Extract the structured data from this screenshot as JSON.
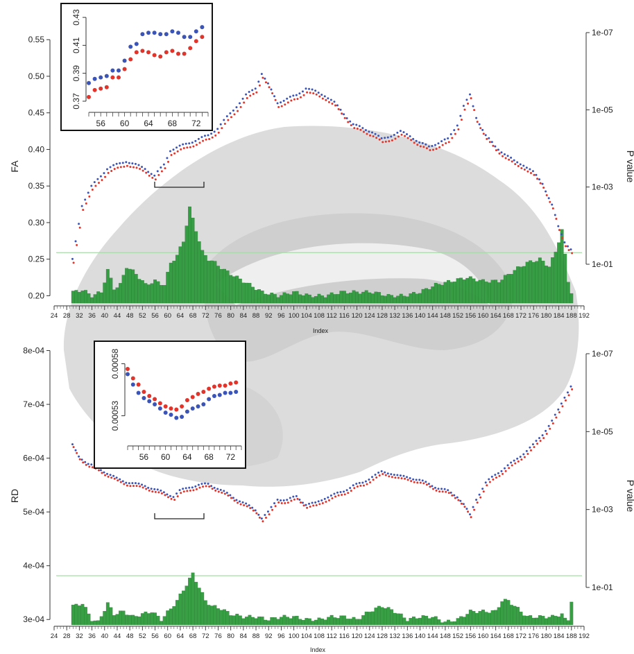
{
  "chart_data": [
    {
      "type": "line",
      "panel": "FA",
      "ylabel": "FA",
      "xlabel": "Index",
      "y2label": "P value",
      "xlim": [
        24,
        192
      ],
      "ylim": [
        0.19,
        0.59
      ],
      "x_ticks": [
        24,
        28,
        32,
        36,
        40,
        44,
        48,
        52,
        56,
        60,
        64,
        68,
        72,
        76,
        80,
        84,
        88,
        92,
        96,
        100,
        104,
        108,
        112,
        116,
        120,
        124,
        128,
        132,
        136,
        140,
        144,
        148,
        152,
        156,
        160,
        164,
        168,
        172,
        176,
        180,
        184,
        188,
        192
      ],
      "y_ticks": [
        0.2,
        0.25,
        0.3,
        0.35,
        0.4,
        0.45,
        0.5,
        0.55
      ],
      "y_tick_labels": [
        "0.20",
        "0.25",
        "0.30",
        "0.35",
        "0.40",
        "0.45",
        "0.50",
        "0.55"
      ],
      "p_ticks": [
        "1e-07",
        "1e-05",
        "1e-03",
        "1e-01"
      ],
      "threshold_p": 0.05,
      "colors": {
        "series_a": "#3a54b8",
        "series_b": "#e2342a",
        "bars": "#2f9a3c",
        "threshold": "#a8dca8"
      },
      "curve_anchors": {
        "x": [
          30,
          33,
          36,
          39,
          41,
          44,
          47,
          50,
          53,
          56,
          59,
          61,
          64,
          67,
          70,
          73,
          76,
          79,
          82,
          85,
          88,
          90,
          92,
          95,
          98,
          101,
          104,
          107,
          110,
          113,
          116,
          119,
          122,
          125,
          128,
          131,
          134,
          137,
          140,
          143,
          146,
          149,
          152,
          154,
          156,
          158,
          161,
          164,
          167,
          170,
          173,
          176,
          179,
          182,
          184,
          186,
          188
        ],
        "y": [
          0.245,
          0.32,
          0.345,
          0.36,
          0.37,
          0.375,
          0.38,
          0.375,
          0.37,
          0.36,
          0.375,
          0.395,
          0.4,
          0.405,
          0.41,
          0.415,
          0.425,
          0.44,
          0.455,
          0.47,
          0.48,
          0.5,
          0.485,
          0.46,
          0.465,
          0.47,
          0.48,
          0.475,
          0.47,
          0.46,
          0.445,
          0.43,
          0.425,
          0.42,
          0.41,
          0.415,
          0.42,
          0.415,
          0.405,
          0.4,
          0.405,
          0.41,
          0.43,
          0.455,
          0.47,
          0.44,
          0.415,
          0.4,
          0.39,
          0.38,
          0.375,
          0.365,
          0.35,
          0.32,
          0.29,
          0.27,
          0.26
        ]
      },
      "series_offset": 0.004,
      "bars": {
        "x_range": [
          30,
          188
        ],
        "anchors_x": [
          30,
          33,
          36,
          39,
          41,
          43,
          45,
          47,
          50,
          53,
          56,
          59,
          61,
          63,
          65,
          67,
          69,
          71,
          73,
          75,
          78,
          82,
          86,
          90,
          95,
          100,
          105,
          110,
          115,
          120,
          125,
          130,
          135,
          140,
          145,
          150,
          155,
          160,
          165,
          170,
          174,
          178,
          181,
          183,
          185,
          187,
          188
        ],
        "anchors_y": [
          0.205,
          0.208,
          0.2,
          0.205,
          0.235,
          0.21,
          0.215,
          0.24,
          0.23,
          0.215,
          0.22,
          0.215,
          0.245,
          0.255,
          0.275,
          0.32,
          0.29,
          0.26,
          0.25,
          0.245,
          0.235,
          0.225,
          0.215,
          0.205,
          0.2,
          0.205,
          0.2,
          0.2,
          0.205,
          0.205,
          0.205,
          0.2,
          0.2,
          0.205,
          0.215,
          0.22,
          0.225,
          0.22,
          0.22,
          0.235,
          0.245,
          0.25,
          0.24,
          0.26,
          0.29,
          0.22,
          0.205
        ]
      },
      "inset": {
        "xlim": [
          54,
          74
        ],
        "ylim": [
          0.365,
          0.435
        ],
        "x_ticks": [
          56,
          60,
          64,
          68,
          72
        ],
        "y_ticks": [
          0.37,
          0.39,
          0.41,
          0.43
        ],
        "y_tick_labels": [
          "0.37",
          "0.39",
          "0.41",
          "0.43"
        ],
        "x": [
          54,
          55,
          56,
          57,
          58,
          59,
          60,
          61,
          62,
          63,
          64,
          65,
          66,
          67,
          68,
          69,
          70,
          71,
          72,
          73
        ],
        "series_a": [
          0.383,
          0.386,
          0.387,
          0.388,
          0.392,
          0.392,
          0.399,
          0.409,
          0.411,
          0.418,
          0.419,
          0.419,
          0.418,
          0.418,
          0.42,
          0.419,
          0.416,
          0.416,
          0.42,
          0.423
        ],
        "series_b": [
          0.373,
          0.378,
          0.379,
          0.38,
          0.387,
          0.387,
          0.393,
          0.4,
          0.405,
          0.406,
          0.405,
          0.403,
          0.402,
          0.405,
          0.406,
          0.404,
          0.404,
          0.408,
          0.413,
          0.416
        ]
      }
    },
    {
      "type": "line",
      "panel": "RD",
      "ylabel": "RD",
      "xlabel": "Index",
      "y2label": "P value",
      "xlim": [
        24,
        192
      ],
      "ylim": [
        0.00029,
        0.00082
      ],
      "x_ticks": [
        24,
        28,
        32,
        36,
        40,
        44,
        48,
        52,
        56,
        60,
        64,
        68,
        72,
        76,
        80,
        84,
        88,
        92,
        96,
        100,
        104,
        108,
        112,
        116,
        120,
        124,
        128,
        132,
        136,
        140,
        144,
        148,
        152,
        156,
        160,
        164,
        168,
        172,
        176,
        180,
        184,
        188,
        192
      ],
      "y_ticks": [
        0.0003,
        0.0004,
        0.0005,
        0.0006,
        0.0007,
        0.0008
      ],
      "y_tick_labels": [
        "3e-04",
        "4e-04",
        "5e-04",
        "6e-04",
        "7e-04",
        "8e-04"
      ],
      "p_ticks": [
        "1e-07",
        "1e-05",
        "1e-03",
        "1e-01"
      ],
      "threshold_p": 0.05,
      "colors": {
        "series_a": "#3a54b8",
        "series_b": "#e2342a",
        "bars": "#2f9a3c",
        "threshold": "#a8dca8"
      },
      "curve_anchors": {
        "x": [
          30,
          32,
          35,
          38,
          41,
          44,
          47,
          50,
          53,
          56,
          59,
          62,
          64,
          67,
          70,
          73,
          76,
          79,
          82,
          85,
          88,
          90,
          92,
          95,
          98,
          101,
          104,
          107,
          110,
          113,
          116,
          119,
          122,
          125,
          128,
          131,
          134,
          137,
          140,
          143,
          146,
          149,
          152,
          154,
          156,
          158,
          161,
          164,
          167,
          170,
          173,
          176,
          179,
          182,
          184,
          186,
          188
        ],
        "y": [
          0.00062,
          0.0006,
          0.000585,
          0.000578,
          0.000568,
          0.000558,
          0.000552,
          0.000548,
          0.000545,
          0.000538,
          0.000532,
          0.000525,
          0.000535,
          0.000542,
          0.000546,
          0.000548,
          0.00054,
          0.00053,
          0.00052,
          0.00051,
          0.0005,
          0.000485,
          0.000495,
          0.00052,
          0.000518,
          0.000525,
          0.00051,
          0.000512,
          0.000522,
          0.000528,
          0.000535,
          0.000545,
          0.00055,
          0.000562,
          0.00057,
          0.000568,
          0.000562,
          0.00056,
          0.000555,
          0.000548,
          0.00054,
          0.000535,
          0.000525,
          0.00051,
          0.00049,
          0.00052,
          0.00055,
          0.000565,
          0.000578,
          0.00059,
          0.000605,
          0.00062,
          0.00064,
          0.000665,
          0.000685,
          0.00071,
          0.00073
        ]
      },
      "series_offset": 4e-06,
      "bars": {
        "x_range": [
          30,
          188
        ],
        "anchors_x": [
          30,
          33,
          36,
          38,
          41,
          43,
          46,
          49,
          52,
          55,
          58,
          61,
          63,
          65,
          67,
          68,
          70,
          72,
          74,
          77,
          80,
          84,
          88,
          92,
          96,
          100,
          104,
          108,
          112,
          116,
          120,
          124,
          128,
          132,
          136,
          140,
          144,
          148,
          152,
          156,
          160,
          164,
          166,
          168,
          171,
          174,
          178,
          182,
          185,
          186,
          187,
          188
        ],
        "anchors_y": [
          0.000325,
          0.00033,
          0.0003,
          0.000295,
          0.00033,
          0.00031,
          0.000315,
          0.000305,
          0.00031,
          0.000315,
          0.0003,
          0.00032,
          0.000335,
          0.000355,
          0.000375,
          0.000385,
          0.00036,
          0.000335,
          0.000325,
          0.00032,
          0.00031,
          0.000305,
          0.000305,
          0.0003,
          0.000305,
          0.000305,
          0.0003,
          0.0003,
          0.000305,
          0.000305,
          0.0003,
          0.000315,
          0.000325,
          0.000315,
          0.0003,
          0.000305,
          0.000305,
          0.000295,
          0.0003,
          0.000315,
          0.000315,
          0.000315,
          0.000335,
          0.000335,
          0.00032,
          0.000305,
          0.000305,
          0.000305,
          0.00031,
          0.0003,
          0.0003,
          0.000335
        ]
      },
      "inset": {
        "xlim": [
          53,
          74
        ],
        "ylim": [
          0.000505,
          0.000595
        ],
        "x_ticks": [
          56,
          60,
          64,
          68,
          72
        ],
        "y_ticks": [
          0.00053,
          0.00058
        ],
        "y_tick_labels": [
          "0.00053",
          "0.00058"
        ],
        "x": [
          53,
          54,
          55,
          56,
          57,
          58,
          59,
          60,
          61,
          62,
          63,
          64,
          65,
          66,
          67,
          68,
          69,
          70,
          71,
          72,
          73
        ],
        "series_a": [
          0.00057,
          0.00056,
          0.000552,
          0.000547,
          0.000544,
          0.000541,
          0.000537,
          0.000533,
          0.000531,
          0.000528,
          0.000529,
          0.000534,
          0.000537,
          0.000539,
          0.000541,
          0.000546,
          0.000549,
          0.00055,
          0.000552,
          0.000552,
          0.000553
        ],
        "series_b": [
          0.000575,
          0.000566,
          0.00056,
          0.000553,
          0.000549,
          0.000546,
          0.000542,
          0.000539,
          0.000537,
          0.000536,
          0.000539,
          0.000545,
          0.000548,
          0.000551,
          0.000553,
          0.000556,
          0.000558,
          0.000559,
          0.000559,
          0.000561,
          0.000562
        ]
      }
    }
  ]
}
